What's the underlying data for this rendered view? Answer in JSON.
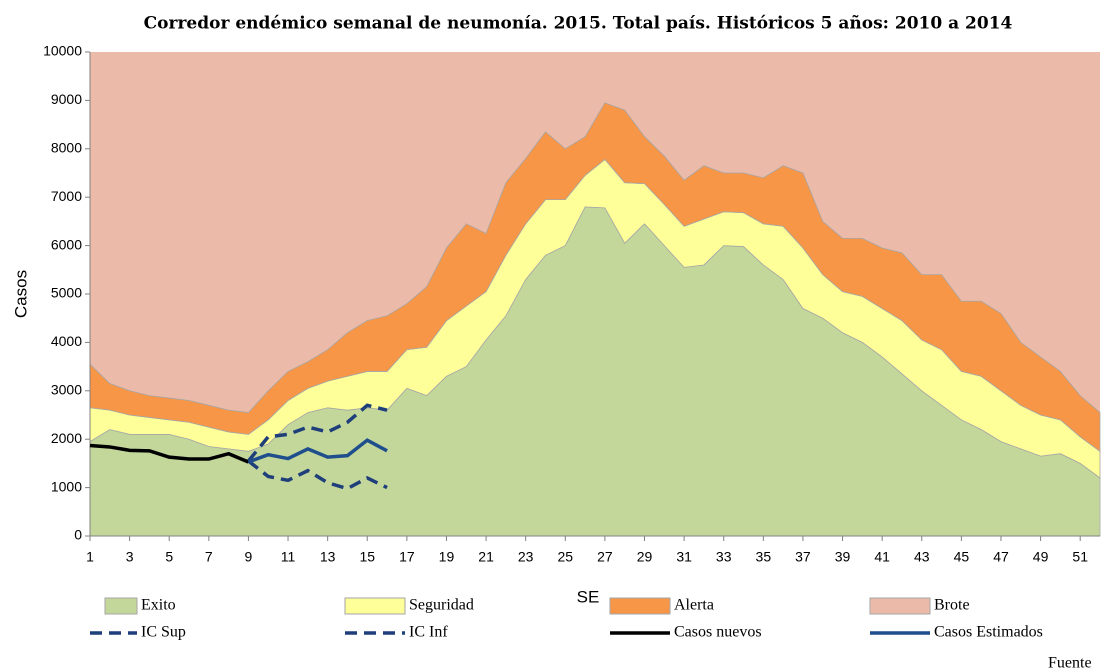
{
  "chart_data": {
    "type": "stacked_area",
    "title": "Corredor endémico semanal de neumonía. 2015. Total país. Históricos 5 años: 2010 a 2014",
    "x_label": "SE",
    "y_label": "Casos",
    "source": "Fuente",
    "categories": [
      1,
      null,
      3,
      null,
      5,
      null,
      7,
      null,
      9,
      null,
      11,
      null,
      13,
      null,
      15,
      null,
      17,
      null,
      19,
      null,
      21,
      null,
      23,
      null,
      25,
      null,
      27,
      null,
      29,
      null,
      31,
      null,
      33,
      null,
      35,
      null,
      37,
      null,
      39,
      null,
      41,
      null,
      43,
      null,
      45,
      null,
      47,
      null,
      49,
      null,
      51,
      null
    ],
    "ylim": [
      0,
      10000
    ],
    "yticks": [
      0,
      1000,
      2000,
      3000,
      4000,
      5000,
      6000,
      7000,
      8000,
      9000,
      10000
    ],
    "series": [
      {
        "name": "Exito",
        "kind": "area",
        "color": "#c4d79b",
        "values": [
          1950,
          2200,
          2100,
          2100,
          2100,
          2000,
          1850,
          1800,
          1750,
          1900,
          2300,
          2550,
          2650,
          2600,
          2650,
          2600,
          3050,
          2900,
          3300,
          3500,
          4050,
          4550,
          5300,
          5800,
          6000,
          6800,
          6780,
          6050,
          6450,
          6000,
          5550,
          5600,
          6000,
          5980,
          5600,
          5300,
          4700,
          4500,
          4200,
          4000,
          3700,
          3350,
          3000,
          2700,
          2400,
          2200,
          1950,
          1800,
          1650,
          1700,
          1500,
          1200
        ]
      },
      {
        "name": "Seguridad",
        "kind": "area",
        "color": "#ffff99",
        "values": [
          700,
          400,
          400,
          350,
          300,
          350,
          400,
          350,
          350,
          500,
          500,
          500,
          550,
          700,
          750,
          800,
          800,
          1000,
          1150,
          1250,
          1000,
          1250,
          1150,
          1150,
          950,
          650,
          1000,
          1250,
          830,
          850,
          850,
          950,
          700,
          700,
          850,
          1100,
          1250,
          900,
          850,
          950,
          1000,
          1100,
          1050,
          1150,
          1000,
          1100,
          1050,
          900,
          850,
          700,
          550,
          550
        ]
      },
      {
        "name": "Alerta",
        "kind": "area",
        "color": "#f79646",
        "values": [
          900,
          550,
          500,
          450,
          450,
          450,
          450,
          450,
          450,
          600,
          600,
          550,
          650,
          900,
          1050,
          1150,
          950,
          1250,
          1500,
          1700,
          1200,
          1500,
          1350,
          1400,
          1050,
          800,
          1170,
          1500,
          970,
          1000,
          950,
          1100,
          800,
          820,
          950,
          1250,
          1550,
          1100,
          1100,
          1200,
          1250,
          1400,
          1350,
          1550,
          1450,
          1550,
          1600,
          1300,
          1200,
          1000,
          850,
          800
        ]
      },
      {
        "name": "Brote",
        "kind": "fill",
        "color": "#ecbaa9"
      },
      {
        "name": "IC Sup",
        "kind": "line",
        "dashed": true,
        "color": "#1f3f7a",
        "values": [
          null,
          null,
          null,
          null,
          null,
          null,
          null,
          null,
          1550,
          2050,
          2100,
          2250,
          2150,
          2350,
          2700,
          2600,
          null,
          null,
          null,
          null,
          null,
          null,
          null,
          null,
          null,
          null,
          null,
          null,
          null,
          null,
          null,
          null,
          null,
          null,
          null,
          null,
          null,
          null,
          null,
          null,
          null,
          null,
          null,
          null,
          null,
          null,
          null,
          null,
          null,
          null,
          null,
          null
        ]
      },
      {
        "name": "IC Inf",
        "kind": "line",
        "dashed": true,
        "color": "#1f3f7a",
        "values": [
          null,
          null,
          null,
          null,
          null,
          null,
          null,
          null,
          1550,
          1230,
          1150,
          1350,
          1100,
          980,
          1200,
          1000,
          null,
          null,
          null,
          null,
          null,
          null,
          null,
          null,
          null,
          null,
          null,
          null,
          null,
          null,
          null,
          null,
          null,
          null,
          null,
          null,
          null,
          null,
          null,
          null,
          null,
          null,
          null,
          null,
          null,
          null,
          null,
          null,
          null,
          null,
          null,
          null
        ]
      },
      {
        "name": "Casos nuevos",
        "kind": "line",
        "dashed": false,
        "color": "#000000",
        "values": [
          1870,
          1840,
          1770,
          1760,
          1630,
          1590,
          1590,
          1700,
          1530,
          null,
          null,
          null,
          null,
          null,
          null,
          null,
          null,
          null,
          null,
          null,
          null,
          null,
          null,
          null,
          null,
          null,
          null,
          null,
          null,
          null,
          null,
          null,
          null,
          null,
          null,
          null,
          null,
          null,
          null,
          null,
          null,
          null,
          null,
          null,
          null,
          null,
          null,
          null,
          null,
          null,
          null,
          null
        ]
      },
      {
        "name": "Casos Estimados",
        "kind": "line",
        "dashed": false,
        "color": "#1f4e8c",
        "values": [
          null,
          null,
          null,
          null,
          null,
          null,
          null,
          null,
          1530,
          1680,
          1600,
          1800,
          1630,
          1660,
          1980,
          1760,
          null,
          null,
          null,
          null,
          null,
          null,
          null,
          null,
          null,
          null,
          null,
          null,
          null,
          null,
          null,
          null,
          null,
          null,
          null,
          null,
          null,
          null,
          null,
          null,
          null,
          null,
          null,
          null,
          null,
          null,
          null,
          null,
          null,
          null,
          null,
          null
        ]
      }
    ]
  }
}
